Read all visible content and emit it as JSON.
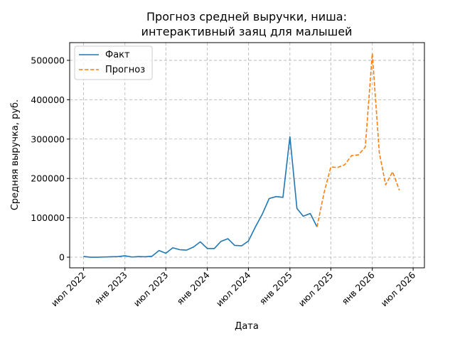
{
  "chart_data": {
    "type": "line",
    "title_lines": [
      "Прогноз средней выручки, ниша:",
      "интерактивный заяц для малышей"
    ],
    "xlabel": "Дата",
    "ylabel": "Средняя выручка, руб.",
    "xlim": [
      "2022-05-01",
      "2026-08-20"
    ],
    "ylim": [
      -27000,
      545000
    ],
    "x_ticks": [
      {
        "date": "2022-07-01",
        "label": "июл 2022"
      },
      {
        "date": "2023-01-01",
        "label": "янв 2023"
      },
      {
        "date": "2023-07-01",
        "label": "июл 2023"
      },
      {
        "date": "2024-01-01",
        "label": "янв 2024"
      },
      {
        "date": "2024-07-01",
        "label": "июл 2024"
      },
      {
        "date": "2025-01-01",
        "label": "янв 2025"
      },
      {
        "date": "2025-07-01",
        "label": "июл 2025"
      },
      {
        "date": "2026-01-01",
        "label": "янв 2026"
      },
      {
        "date": "2026-07-01",
        "label": "июл 2026"
      }
    ],
    "y_ticks": [
      0,
      100000,
      200000,
      300000,
      400000,
      500000
    ],
    "grid": true,
    "legend_position": "top-left",
    "series": [
      {
        "name": "Факт",
        "color": "#1f77b4",
        "style": "solid",
        "points": [
          [
            "2022-07-01",
            2000
          ],
          [
            "2022-08-01",
            0
          ],
          [
            "2022-09-01",
            0
          ],
          [
            "2022-10-01",
            500
          ],
          [
            "2022-11-01",
            1000
          ],
          [
            "2022-12-01",
            1500
          ],
          [
            "2023-01-01",
            3500
          ],
          [
            "2023-02-01",
            500
          ],
          [
            "2023-03-01",
            1500
          ],
          [
            "2023-04-01",
            1000
          ],
          [
            "2023-05-01",
            2500
          ],
          [
            "2023-06-01",
            17000
          ],
          [
            "2023-07-01",
            10000
          ],
          [
            "2023-08-01",
            24000
          ],
          [
            "2023-09-01",
            19000
          ],
          [
            "2023-10-01",
            18000
          ],
          [
            "2023-11-01",
            26000
          ],
          [
            "2023-12-01",
            39000
          ],
          [
            "2024-01-01",
            22000
          ],
          [
            "2024-02-01",
            22000
          ],
          [
            "2024-03-01",
            40000
          ],
          [
            "2024-04-01",
            47000
          ],
          [
            "2024-05-01",
            30000
          ],
          [
            "2024-06-01",
            29000
          ],
          [
            "2024-07-01",
            41000
          ],
          [
            "2024-08-01",
            77000
          ],
          [
            "2024-09-01",
            110000
          ],
          [
            "2024-10-01",
            149000
          ],
          [
            "2024-11-01",
            154000
          ],
          [
            "2024-12-01",
            152000
          ],
          [
            "2025-01-01",
            306000
          ],
          [
            "2025-02-01",
            124000
          ],
          [
            "2025-03-01",
            104000
          ],
          [
            "2025-04-01",
            111000
          ],
          [
            "2025-05-01",
            77000
          ]
        ]
      },
      {
        "name": "Прогноз",
        "color": "#ff7f0e",
        "style": "dashed",
        "points": [
          [
            "2025-05-01",
            77000
          ],
          [
            "2025-06-01",
            163000
          ],
          [
            "2025-07-01",
            229000
          ],
          [
            "2025-08-01",
            228000
          ],
          [
            "2025-09-01",
            235000
          ],
          [
            "2025-10-01",
            258000
          ],
          [
            "2025-11-01",
            260000
          ],
          [
            "2025-12-01",
            280000
          ],
          [
            "2026-01-01",
            518000
          ],
          [
            "2026-02-01",
            266000
          ],
          [
            "2026-03-01",
            184000
          ],
          [
            "2026-04-01",
            217000
          ],
          [
            "2026-05-01",
            170000
          ]
        ]
      }
    ]
  }
}
